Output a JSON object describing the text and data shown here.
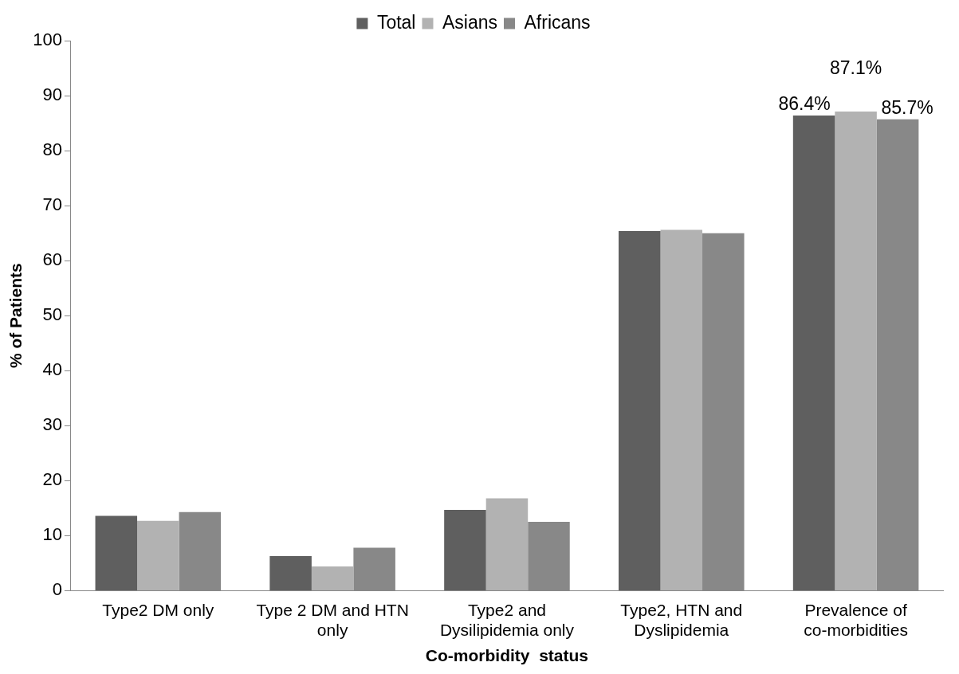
{
  "chart_data": {
    "type": "bar",
    "xlabel": "Co-morbidity  status",
    "ylabel": "% of Patients",
    "categories": [
      "Type2 DM only",
      "Type 2 DM and HTN only",
      "Type2 and Dysilipidemia only",
      "Type2, HTN and Dyslipidemia",
      "Prevalence of co-morbidities"
    ],
    "series": [
      {
        "name": "Total",
        "color": "#5f5f5f",
        "values": [
          13.6,
          6.3,
          14.7,
          65.4,
          86.4
        ],
        "value_labels": [
          null,
          null,
          null,
          null,
          "86.4%"
        ]
      },
      {
        "name": "Asians",
        "color": "#b2b2b2",
        "values": [
          12.7,
          4.4,
          16.8,
          65.6,
          87.1
        ],
        "value_labels": [
          null,
          null,
          null,
          null,
          "87.1%"
        ]
      },
      {
        "name": "Africans",
        "color": "#888888",
        "values": [
          14.3,
          7.8,
          12.5,
          65.0,
          85.7
        ],
        "value_labels": [
          null,
          null,
          null,
          null,
          "85.7%"
        ]
      }
    ],
    "ylim": [
      0,
      100
    ],
    "yticks": [
      0,
      10,
      20,
      30,
      40,
      50,
      60,
      70,
      80,
      90,
      100
    ],
    "grid": false,
    "legend": "top"
  }
}
